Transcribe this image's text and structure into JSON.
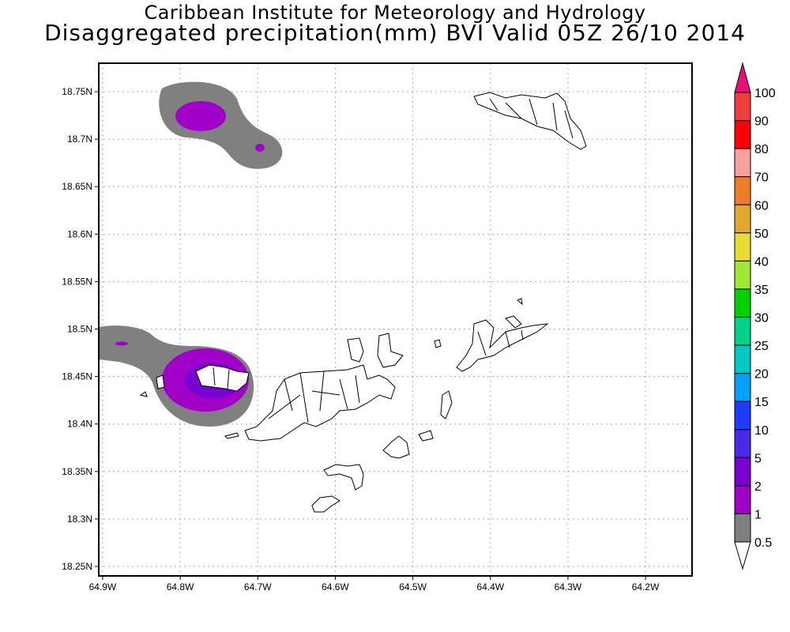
{
  "title": {
    "line1": "Caribbean Institute for Meteorology and Hydrology",
    "line2": "Disaggregated precipitation(mm) BVI Valid 05Z 26/10 2014"
  },
  "axes": {
    "x_ticks": [
      {
        "value": -64.9,
        "label": "64.9W"
      },
      {
        "value": -64.8,
        "label": "64.8W"
      },
      {
        "value": -64.7,
        "label": "64.7W"
      },
      {
        "value": -64.6,
        "label": "64.6W"
      },
      {
        "value": -64.5,
        "label": "64.5W"
      },
      {
        "value": -64.4,
        "label": "64.4W"
      },
      {
        "value": -64.3,
        "label": "64.3W"
      },
      {
        "value": -64.2,
        "label": "64.2W"
      }
    ],
    "y_ticks": [
      {
        "value": 18.75,
        "label": "18.75N"
      },
      {
        "value": 18.7,
        "label": "18.7N"
      },
      {
        "value": 18.65,
        "label": "18.65N"
      },
      {
        "value": 18.6,
        "label": "18.6N"
      },
      {
        "value": 18.55,
        "label": "18.55N"
      },
      {
        "value": 18.5,
        "label": "18.5N"
      },
      {
        "value": 18.45,
        "label": "18.45N"
      },
      {
        "value": 18.4,
        "label": "18.4N"
      },
      {
        "value": 18.35,
        "label": "18.35N"
      },
      {
        "value": 18.3,
        "label": "18.3N"
      },
      {
        "value": 18.25,
        "label": "18.25N"
      }
    ],
    "lon_range": [
      -64.905,
      -64.14
    ],
    "lat_range": [
      18.24,
      18.78
    ]
  },
  "colorbar": {
    "labels": [
      "100",
      "90",
      "80",
      "70",
      "60",
      "50",
      "40",
      "35",
      "30",
      "25",
      "20",
      "15",
      "10",
      "5",
      "2",
      "1",
      "0.5"
    ],
    "over_color": "#e81078",
    "under_color": "#ffffff",
    "colors": [
      "#f03c3c",
      "#ff0000",
      "#f8a0a0",
      "#f07c28",
      "#e0a82c",
      "#e6dc32",
      "#a0e632",
      "#00d200",
      "#00d28c",
      "#00c8c8",
      "#00a0ff",
      "#1e3cff",
      "#4a28e8",
      "#7800d2",
      "#a000c8",
      "#808080"
    ]
  }
}
